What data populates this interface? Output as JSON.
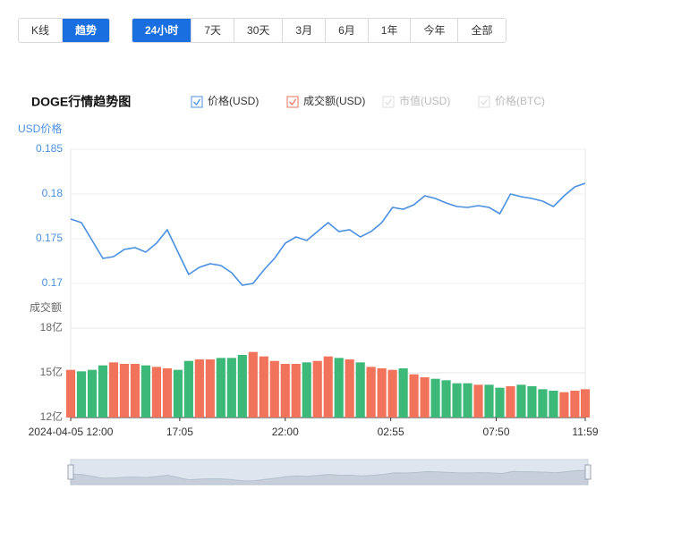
{
  "tabs": {
    "items": [
      "K线",
      "趋势"
    ],
    "active": 1
  },
  "ranges": {
    "items": [
      "24小时",
      "7天",
      "30天",
      "3月",
      "6月",
      "1年",
      "今年",
      "全部"
    ],
    "active": 0
  },
  "chart_data": {
    "type": "combo",
    "title": "DOGE行情趋势图",
    "y_label": "USD价格",
    "y2_label": "成交额",
    "legend_extra": [
      "市值(USD)",
      "价格(BTC)"
    ],
    "x": [
      0,
      30,
      60,
      90,
      120,
      150,
      180,
      210,
      240,
      270,
      300,
      330,
      360,
      390,
      420,
      450,
      480,
      510,
      540,
      570,
      600,
      630,
      660,
      690,
      720,
      750,
      780,
      810,
      840,
      870,
      900,
      930,
      960,
      990,
      1020,
      1050,
      1080,
      1110,
      1140,
      1170,
      1200,
      1230,
      1260,
      1290,
      1320,
      1350,
      1380,
      1410,
      1439
    ],
    "xlim": [
      0,
      1439
    ],
    "xticks": [
      {
        "value": 0,
        "label": "2024-04-05 12:00"
      },
      {
        "value": 305,
        "label": "17:05"
      },
      {
        "value": 600,
        "label": "22:00"
      },
      {
        "value": 895,
        "label": "02:55"
      },
      {
        "value": 1190,
        "label": "07:50"
      },
      {
        "value": 1439,
        "label": "11:59"
      }
    ],
    "ylim": [
      0.165,
      0.185
    ],
    "yticks": [
      0.17,
      0.175,
      0.18,
      0.185
    ],
    "y2lim": [
      12,
      18
    ],
    "y2ticks": [
      {
        "value": 12,
        "label": "12亿"
      },
      {
        "value": 15,
        "label": "15亿"
      },
      {
        "value": 18,
        "label": "18亿"
      }
    ],
    "up_color": "#f2735b",
    "down_color": "#3cb878",
    "grid": true,
    "series": [
      {
        "name": "价格(USD)",
        "color": "#4a90e2",
        "values": [
          0.1772,
          0.1768,
          0.1748,
          0.1728,
          0.173,
          0.1738,
          0.174,
          0.1735,
          0.1745,
          0.176,
          0.1735,
          0.171,
          0.1718,
          0.1722,
          0.172,
          0.1712,
          0.1698,
          0.17,
          0.1715,
          0.1728,
          0.1745,
          0.1752,
          0.1748,
          0.1758,
          0.1768,
          0.1758,
          0.176,
          0.1752,
          0.1758,
          0.1768,
          0.1785,
          0.1783,
          0.1788,
          0.1798,
          0.1795,
          0.179,
          0.1786,
          0.1785,
          0.1787,
          0.1785,
          0.1778,
          0.18,
          0.1797,
          0.1795,
          0.1792,
          0.1786,
          0.1798,
          0.1808,
          0.1812
        ]
      },
      {
        "name": "成交额(USD)",
        "color": "#f2735b",
        "axis": "y2",
        "values": [
          15.2,
          15.1,
          15.2,
          15.5,
          15.7,
          15.6,
          15.6,
          15.5,
          15.4,
          15.3,
          15.2,
          15.8,
          15.9,
          15.9,
          16.0,
          16.0,
          16.2,
          16.4,
          16.1,
          15.8,
          15.6,
          15.6,
          15.7,
          15.8,
          16.1,
          16.0,
          15.9,
          15.7,
          15.4,
          15.3,
          15.2,
          15.3,
          14.9,
          14.7,
          14.6,
          14.5,
          14.3,
          14.3,
          14.2,
          14.2,
          14.0,
          14.1,
          14.2,
          14.1,
          13.9,
          13.8,
          13.7,
          13.8,
          13.9
        ]
      }
    ]
  }
}
